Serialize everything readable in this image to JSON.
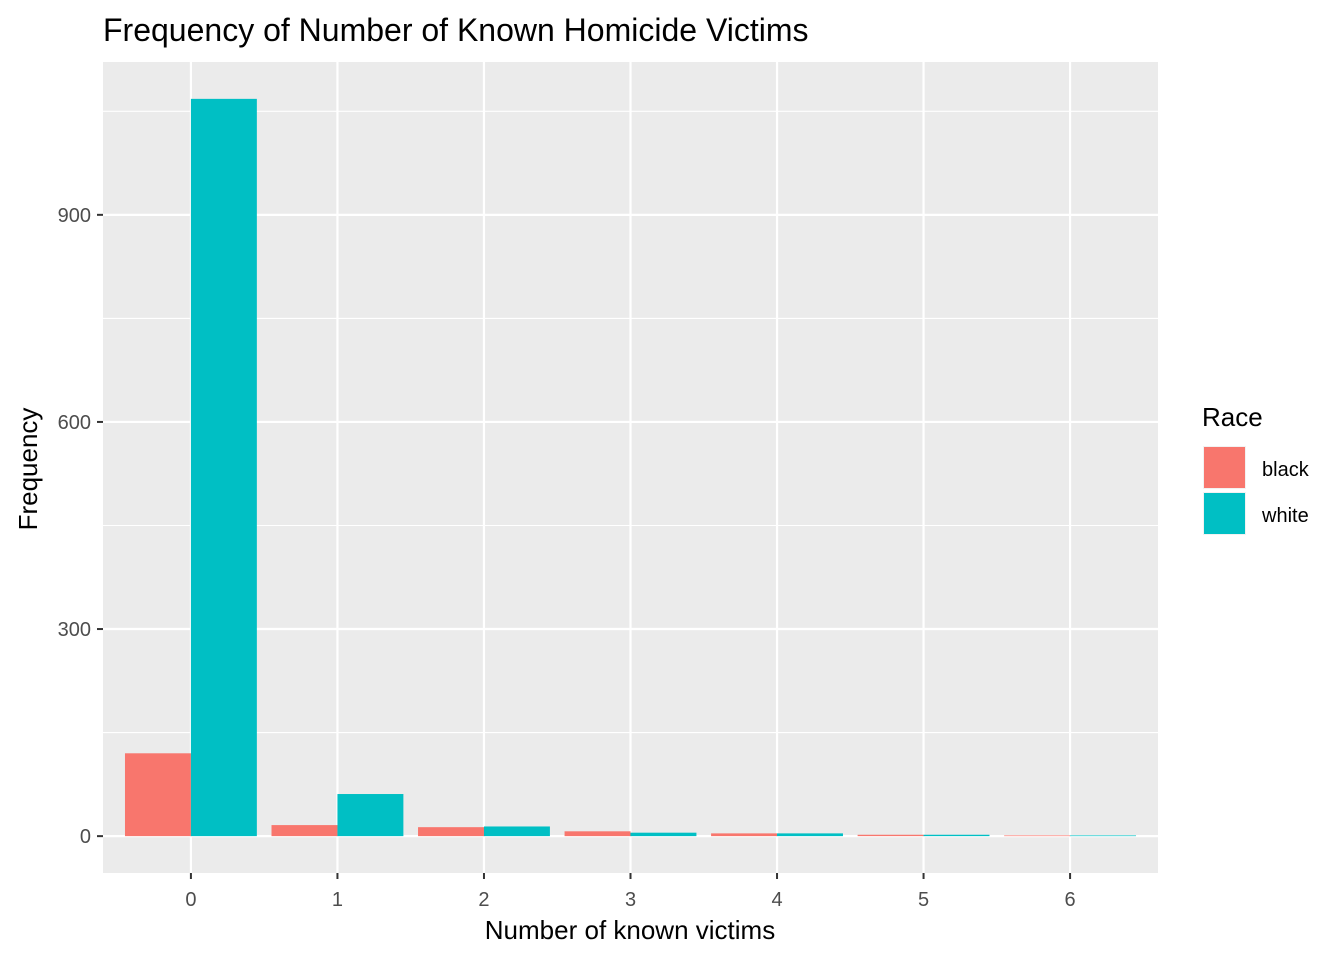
{
  "chart_data": {
    "type": "bar",
    "title": "Frequency of Number of Known Homicide Victims",
    "xlabel": "Number of known victims",
    "ylabel": "Frequency",
    "categories": [
      "0",
      "1",
      "2",
      "3",
      "4",
      "5",
      "6"
    ],
    "series": [
      {
        "name": "black",
        "color": "#F8766D",
        "values": [
          120,
          16,
          13,
          7,
          4,
          2,
          1
        ]
      },
      {
        "name": "white",
        "color": "#00BFC4",
        "values": [
          1068,
          61,
          14,
          5,
          4,
          2,
          1
        ]
      }
    ],
    "yticks": [
      0,
      300,
      600,
      900
    ],
    "ylim": [
      -53.4,
      1121.4
    ],
    "grid": true,
    "legend": {
      "title": "Race",
      "position": "right"
    },
    "panel_background": "#EBEBEB",
    "grid_color": "#FFFFFF"
  }
}
